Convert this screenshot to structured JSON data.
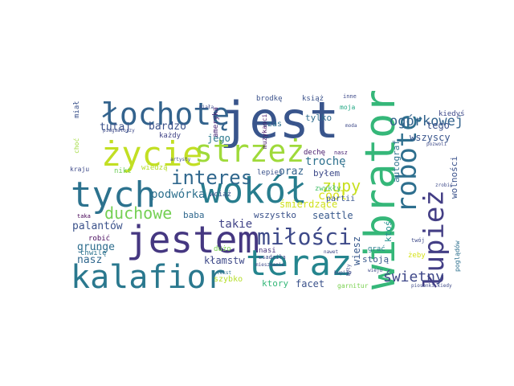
{
  "words": [
    {
      "text": "jest",
      "color": "#39558c"
    },
    {
      "text": "jestem",
      "color": "#453781"
    },
    {
      "text": "wokół",
      "color": "#287d8e"
    },
    {
      "text": "wibrator",
      "color": "#35b779"
    },
    {
      "text": "kalafior",
      "color": "#2a788e"
    },
    {
      "text": "teraz",
      "color": "#25858e"
    },
    {
      "text": "tych",
      "color": "#2c728e"
    },
    {
      "text": "życie",
      "color": "#c2df23"
    },
    {
      "text": "łochotę",
      "color": "#33638d"
    },
    {
      "text": "strzeż",
      "color": "#9fda3a"
    },
    {
      "text": "robotę",
      "color": "#2e6f8e"
    },
    {
      "text": "łupież",
      "color": "#433e85"
    },
    {
      "text": "miłości",
      "color": "#3e4a89"
    },
    {
      "text": "interes",
      "color": "#31688e"
    },
    {
      "text": "duchowe",
      "color": "#75d054"
    },
    {
      "text": "zupy",
      "color": "#c8e020"
    },
    {
      "text": "ogórkowej",
      "color": "#33638d"
    },
    {
      "text": "świetny",
      "color": "#3f4889"
    },
    {
      "text": "podwórka",
      "color": "#2d708e"
    },
    {
      "text": "cool",
      "color": "#d8e219"
    },
    {
      "text": "tutaj",
      "color": "#3b528b"
    },
    {
      "text": "bardzo",
      "color": "#3b528b"
    },
    {
      "text": "jego",
      "color": "#2a788e"
    },
    {
      "text": "oraz",
      "color": "#33638d"
    },
    {
      "text": "trochę",
      "color": "#2d708e"
    },
    {
      "text": "śmierdzące",
      "color": "#d0e11c"
    },
    {
      "text": "takie",
      "color": "#414487"
    },
    {
      "text": "baba",
      "color": "#31688e"
    },
    {
      "text": "wszystko",
      "color": "#3b528b"
    },
    {
      "text": "seattle",
      "color": "#38598c"
    },
    {
      "text": "palantów",
      "color": "#3b528b"
    },
    {
      "text": "grunge",
      "color": "#2e6e8e"
    },
    {
      "text": "nasz",
      "color": "#31688e"
    },
    {
      "text": "kłamstw",
      "color": "#3e4989"
    },
    {
      "text": "wiesz",
      "color": "#38598c"
    },
    {
      "text": "ktoś",
      "color": "#21908d"
    },
    {
      "text": "stoją",
      "color": "#38598c"
    },
    {
      "text": "facet",
      "color": "#3b528b"
    },
    {
      "text": "ktory",
      "color": "#35b779"
    },
    {
      "text": "szybko",
      "color": "#b5de2b"
    },
    {
      "text": "tego",
      "color": "#3b528b"
    },
    {
      "text": "wszyscy",
      "color": "#39558c"
    },
    {
      "text": "byłem",
      "color": "#3e4a89"
    },
    {
      "text": "zwykły",
      "color": "#4ac16d"
    },
    {
      "text": "partii",
      "color": "#39558c"
    },
    {
      "text": "autograf",
      "color": "#2c738e"
    },
    {
      "text": "wolności",
      "color": "#3b528b"
    },
    {
      "text": "kiedyś",
      "color": "#3e4989"
    },
    {
      "text": "tylko",
      "color": "#2f6c8e"
    },
    {
      "text": "czas",
      "color": "#2d708e"
    },
    {
      "text": "brodkę",
      "color": "#3b528b"
    },
    {
      "text": "książ",
      "color": "#3b528b"
    },
    {
      "text": "moja",
      "color": "#22a884"
    },
    {
      "text": "inne",
      "color": "#3e4a89"
    },
    {
      "text": "dechę",
      "color": "#481b6d"
    },
    {
      "text": "nasz",
      "color": "#482475"
    },
    {
      "text": "lepiej",
      "color": "#3b528b"
    },
    {
      "text": "każdy",
      "color": "#414487"
    },
    {
      "text": "nikt",
      "color": "#6ece58"
    },
    {
      "text": "wiedzą",
      "color": "#b5de2b"
    },
    {
      "text": "wciąż",
      "color": "#39558c"
    },
    {
      "text": "dużo",
      "color": "#7ad151"
    },
    {
      "text": "robić",
      "color": "#46085c"
    },
    {
      "text": "chwilę",
      "color": "#2c738e"
    },
    {
      "text": "taka",
      "color": "#440154"
    },
    {
      "text": "nasi",
      "color": "#46327e"
    },
    {
      "text": "wsadziła",
      "color": "#3e4a89"
    },
    {
      "text": "garnitur",
      "color": "#7ad151"
    },
    {
      "text": "grać",
      "color": "#287d8e"
    },
    {
      "text": "żeby",
      "color": "#d5e21a"
    },
    {
      "text": "twój",
      "color": "#3e4a89"
    },
    {
      "text": "poglądów",
      "color": "#2d708e"
    },
    {
      "text": "ameryka",
      "color": "#482475"
    },
    {
      "text": "muzykanci",
      "color": "#481769"
    },
    {
      "text": "miał",
      "color": "#3b528b"
    },
    {
      "text": "choć",
      "color": "#9fda3a"
    },
    {
      "text": "kraju",
      "color": "#3e4a89"
    },
    {
      "text": "artysty",
      "color": "#3e4a89"
    },
    {
      "text": "piosenki kiedy",
      "color": "#3e4a89"
    },
    {
      "text": "tekst",
      "color": "#2d708e"
    },
    {
      "text": "były",
      "color": "#3e4a89"
    },
    {
      "text": "mieszkanie",
      "color": "#3e4a89"
    },
    {
      "text": "piagiatorzy",
      "color": "#3e4a89"
    },
    {
      "text": "pozwoli",
      "color": "#3e4a89"
    },
    {
      "text": "wieju",
      "color": "#3e4a89"
    },
    {
      "text": "kupiła",
      "color": "#3e4a89"
    },
    {
      "text": "nawet",
      "color": "#3e4a89"
    },
    {
      "text": "zrobić",
      "color": "#3e4a89"
    },
    {
      "text": "moda",
      "color": "#3e4a89"
    },
    {
      "text": "miała",
      "color": "#3e4a89"
    }
  ]
}
